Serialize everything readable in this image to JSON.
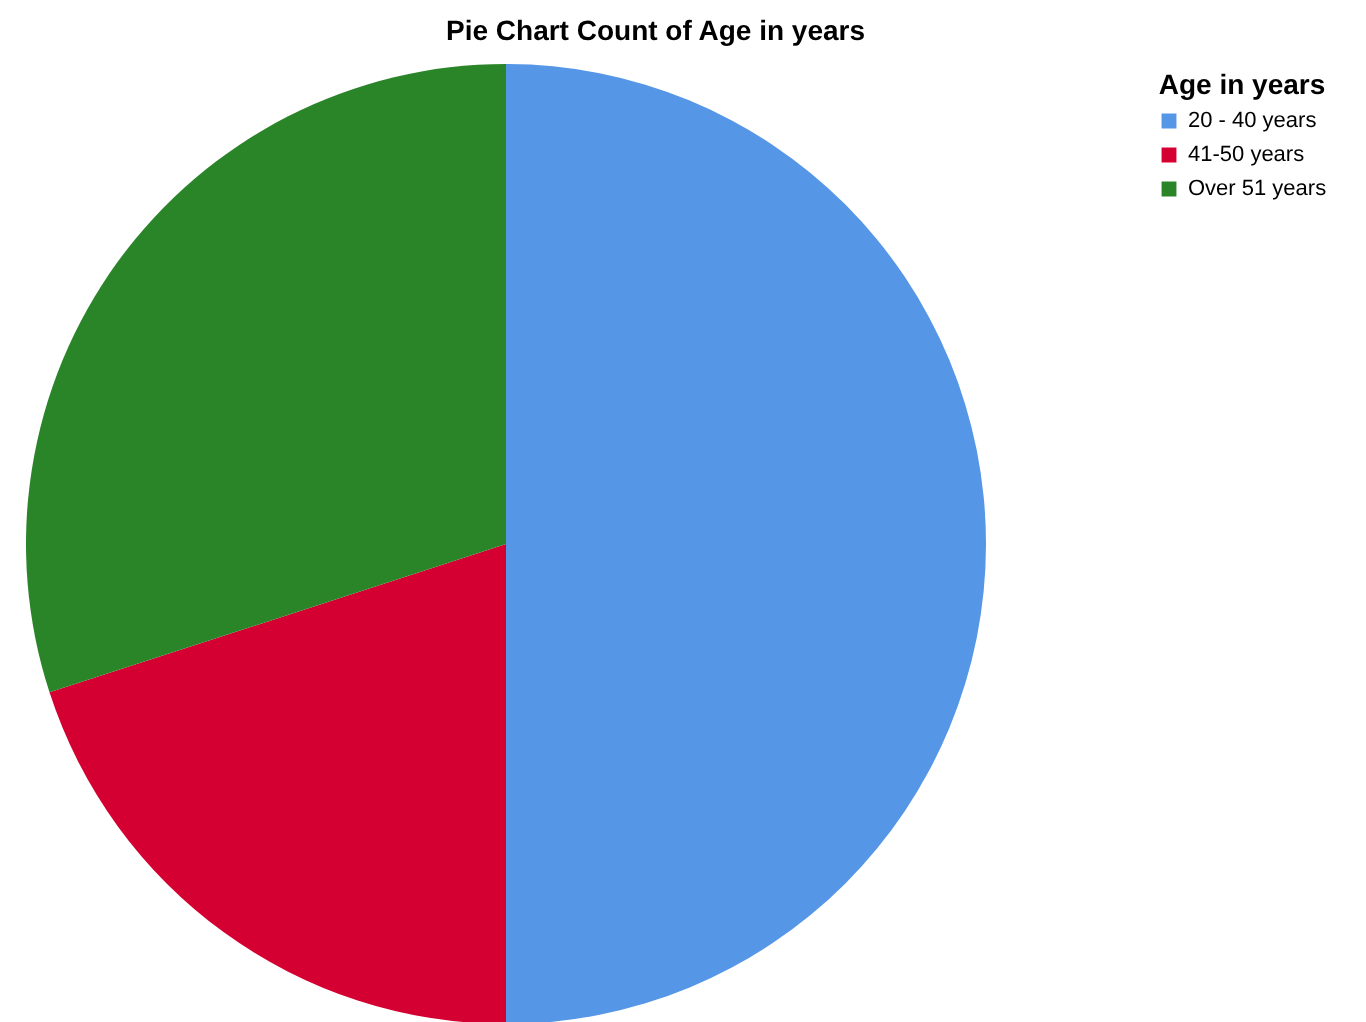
{
  "chart_data": {
    "type": "pie",
    "title": "Pie Chart Count of Age in years",
    "legend_title": "Age in years",
    "legend": "top right",
    "categories": [
      "20 - 40 years",
      "41-50 years",
      "Over 51 years"
    ],
    "values": [
      50,
      20,
      30
    ],
    "colors": [
      "#5596e6",
      "#d50032",
      "#2a8529"
    ]
  }
}
